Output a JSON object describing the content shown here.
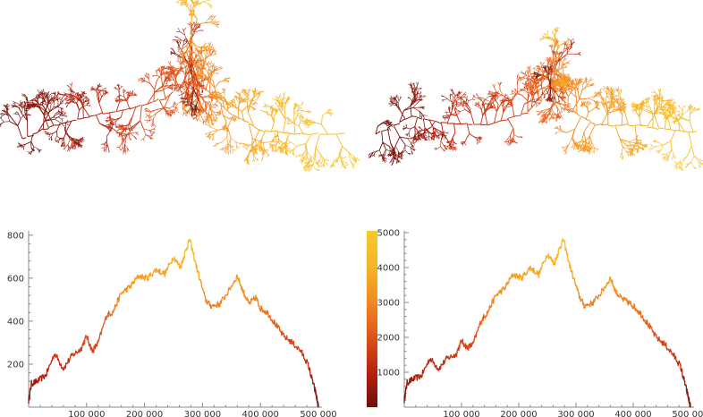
{
  "chart_data": [
    {
      "type": "line",
      "x_range": [
        0,
        500000
      ],
      "ylim": [
        0,
        820
      ],
      "xticks": [
        100000,
        200000,
        300000,
        400000,
        500000
      ],
      "xtick_labels": [
        "100 000",
        "200 000",
        "300 000",
        "400 000",
        "500 000"
      ],
      "yticks": [
        200,
        400,
        600,
        800
      ],
      "ytick_labels": [
        "200",
        "400",
        "600",
        "800"
      ],
      "x": [
        0,
        5000,
        15000,
        30000,
        45000,
        60000,
        75000,
        90000,
        100000,
        110000,
        120000,
        135000,
        145000,
        160000,
        175000,
        190000,
        205000,
        220000,
        235000,
        250000,
        262000,
        270000,
        278000,
        290000,
        305000,
        315000,
        330000,
        345000,
        360000,
        370000,
        380000,
        392000,
        400000,
        412000,
        425000,
        440000,
        455000,
        470000,
        482000,
        490000,
        496000,
        500000
      ],
      "y": [
        30,
        110,
        120,
        150,
        250,
        180,
        240,
        270,
        330,
        260,
        300,
        430,
        440,
        530,
        560,
        610,
        600,
        640,
        620,
        700,
        650,
        720,
        780,
        650,
        500,
        470,
        480,
        540,
        610,
        540,
        480,
        510,
        460,
        440,
        390,
        330,
        300,
        260,
        200,
        120,
        60,
        0
      ],
      "title": "",
      "xlabel": "",
      "ylabel": "",
      "grid": false
    },
    {
      "type": "line",
      "x_range": [
        0,
        500000
      ],
      "ylim": [
        0,
        5050
      ],
      "xticks": [
        100000,
        200000,
        300000,
        400000,
        500000
      ],
      "xtick_labels": [
        "100 000",
        "200 000",
        "300 000",
        "400 000",
        "500 000"
      ],
      "yticks": [
        1000,
        2000,
        3000,
        4000,
        5000
      ],
      "ytick_labels": [
        "1000",
        "2000",
        "3000",
        "4000",
        "5000"
      ],
      "x": [
        0,
        5000,
        15000,
        30000,
        45000,
        60000,
        75000,
        90000,
        100000,
        110000,
        120000,
        135000,
        145000,
        160000,
        175000,
        190000,
        205000,
        220000,
        235000,
        250000,
        262000,
        270000,
        278000,
        290000,
        305000,
        315000,
        330000,
        345000,
        360000,
        370000,
        380000,
        392000,
        400000,
        412000,
        425000,
        440000,
        455000,
        470000,
        482000,
        490000,
        496000,
        500000
      ],
      "y": [
        200,
        700,
        800,
        900,
        1400,
        1100,
        1400,
        1500,
        1900,
        1700,
        1800,
        2500,
        2700,
        3200,
        3400,
        3800,
        3700,
        4000,
        3800,
        4400,
        4100,
        4500,
        4800,
        4000,
        3200,
        2900,
        3000,
        3300,
        3700,
        3300,
        3100,
        3000,
        2900,
        2700,
        2400,
        2000,
        1800,
        1500,
        1200,
        700,
        300,
        0
      ],
      "title": "",
      "xlabel": "",
      "ylabel": "",
      "grid": false
    }
  ],
  "colorbar": {
    "range": [
      0,
      5000
    ],
    "ticks": [
      1000,
      2000,
      3000,
      4000,
      5000
    ],
    "tick_labels": [
      "1000",
      "2000",
      "3000",
      "4000",
      "5000"
    ],
    "colors": [
      "#6e0f0a",
      "#b8220f",
      "#e0531a",
      "#f28a22",
      "#f7b427",
      "#f5cc2c"
    ]
  },
  "trees": [
    {
      "seed": 7,
      "count": 30,
      "palette": "x"
    },
    {
      "seed": 19,
      "count": 32,
      "palette": "x"
    }
  ]
}
